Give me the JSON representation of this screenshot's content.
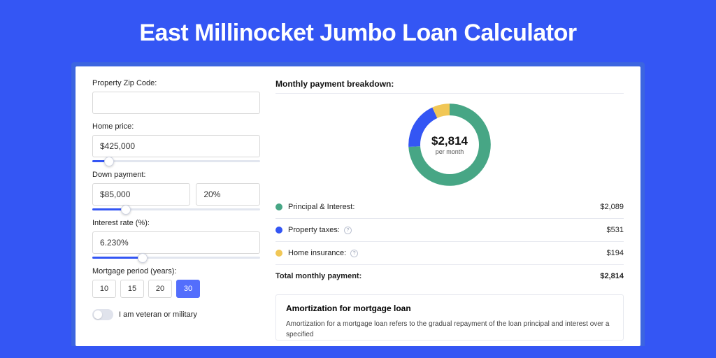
{
  "page": {
    "title": "East Millinocket Jumbo Loan Calculator",
    "bg_color": "#3456f4",
    "card_frame_color": "#3c65e0"
  },
  "form": {
    "zip": {
      "label": "Property Zip Code:",
      "value": ""
    },
    "home_price": {
      "label": "Home price:",
      "value": "$425,000",
      "slider_pct": 10
    },
    "down_payment": {
      "label": "Down payment:",
      "amount": "$85,000",
      "percent": "20%",
      "slider_pct": 20
    },
    "interest_rate": {
      "label": "Interest rate (%):",
      "value": "6.230%",
      "slider_pct": 30
    },
    "mortgage_period": {
      "label": "Mortgage period (years):",
      "options": [
        "10",
        "15",
        "20",
        "30"
      ],
      "selected": "30"
    },
    "veteran": {
      "label": "I am veteran or military",
      "checked": false
    }
  },
  "breakdown": {
    "title": "Monthly payment breakdown:",
    "donut": {
      "value": "$2,814",
      "sub": "per month",
      "slices": [
        {
          "name": "principal_interest",
          "color": "#47a685",
          "pct": 74.2
        },
        {
          "name": "property_taxes",
          "color": "#3456f4",
          "pct": 18.9
        },
        {
          "name": "home_insurance",
          "color": "#f1c756",
          "pct": 6.9
        }
      ],
      "ring_width": 16
    },
    "rows": [
      {
        "dot": "#47a685",
        "label": "Principal & Interest:",
        "info": false,
        "value": "$2,089"
      },
      {
        "dot": "#3456f4",
        "label": "Property taxes:",
        "info": true,
        "value": "$531"
      },
      {
        "dot": "#f1c756",
        "label": "Home insurance:",
        "info": true,
        "value": "$194"
      }
    ],
    "total": {
      "label": "Total monthly payment:",
      "value": "$2,814"
    }
  },
  "amortization": {
    "title": "Amortization for mortgage loan",
    "text": "Amortization for a mortgage loan refers to the gradual repayment of the loan principal and interest over a specified"
  }
}
